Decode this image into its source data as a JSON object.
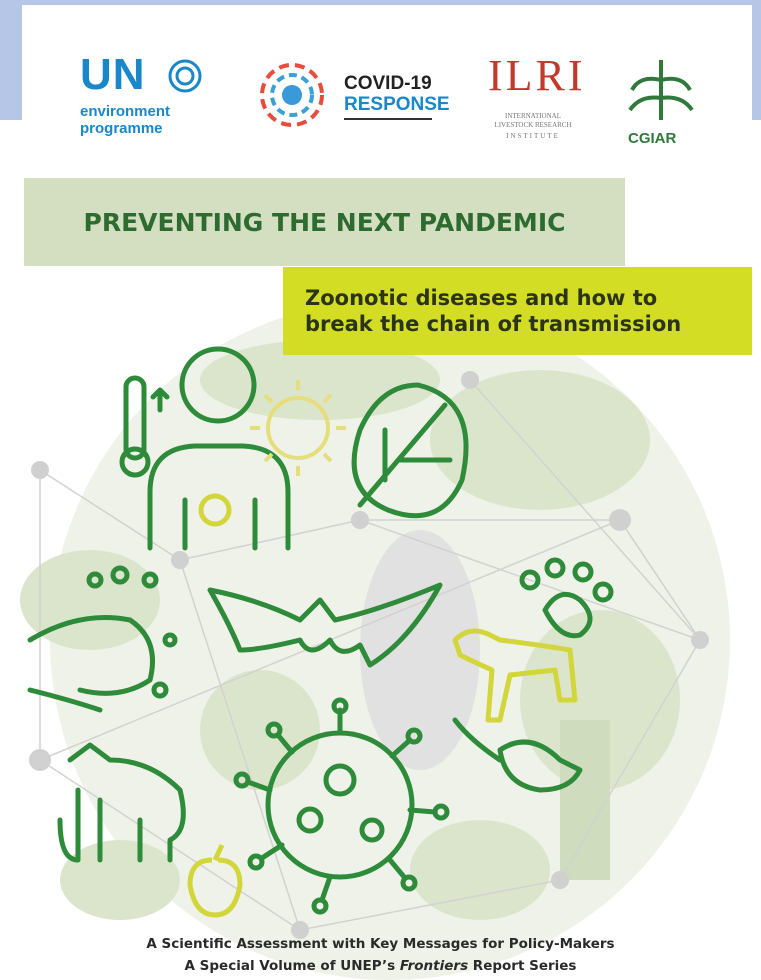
{
  "logos": {
    "un": {
      "name": "UN",
      "line1": "environment",
      "line2": "programme"
    },
    "covid": {
      "line1": "COVID-19",
      "line2": "RESPONSE"
    },
    "ilri": {
      "name": "ILRI",
      "sub": [
        "INTERNATIONAL",
        "LIVESTOCK RESEARCH",
        "INSTITUTE"
      ]
    },
    "cgiar": {
      "name": "CGIAR"
    }
  },
  "title": "PREVENTING THE NEXT PANDEMIC",
  "subtitle": [
    "Zoonotic diseases and how to",
    "break the chain of transmission"
  ],
  "footer": {
    "line1": "A Scientific Assessment with Key Messages for Policy-Makers",
    "line2": [
      "A Special Volume of UNEP’s ",
      "Frontiers",
      " Report Series"
    ]
  }
}
